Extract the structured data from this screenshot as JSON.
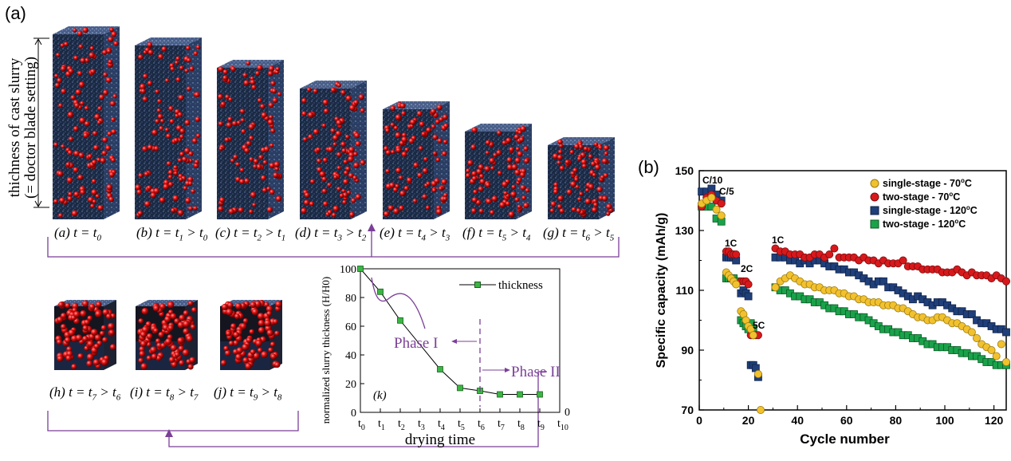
{
  "panel_a": {
    "label": "(a)",
    "thickness_label_line1": "thichness of cast slurry",
    "thickness_label_line2": "(= doctor blade setting)",
    "box_captions": [
      {
        "pre": "(a) t = t",
        "sub": "0",
        "mid": "",
        "sub2": ""
      },
      {
        "pre": "(b) t = t",
        "sub": "1",
        "mid": " > t",
        "sub2": "0"
      },
      {
        "pre": "(c) t = t",
        "sub": "2",
        "mid": " > t",
        "sub2": "1"
      },
      {
        "pre": "(d) t = t",
        "sub": "3",
        "mid": " > t",
        "sub2": "2"
      },
      {
        "pre": "(e) t = t",
        "sub": "4",
        "mid": " > t",
        "sub2": "3"
      },
      {
        "pre": "(f) t = t",
        "sub": "5",
        "mid": " > t",
        "sub2": "4"
      },
      {
        "pre": "(g) t = t",
        "sub": "6",
        "mid": " > t",
        "sub2": "5"
      },
      {
        "pre": "(h) t = t",
        "sub": "7",
        "mid": " > t",
        "sub2": "6"
      },
      {
        "pre": "(i) t = t",
        "sub": "8",
        "mid": " > t",
        "sub2": "7"
      },
      {
        "pre": "(j) t = t",
        "sub": "9",
        "mid": " > t",
        "sub2": "8"
      }
    ]
  },
  "chart_data": [
    {
      "type": "line",
      "panel": "(k)",
      "title": "",
      "xlabel": "drying time",
      "ylabel": "normalized slurry thickness (H/H0)",
      "x_ticks": [
        "t0",
        "t1",
        "t2",
        "t3",
        "t4",
        "t5",
        "t6",
        "t7",
        "t8",
        "t9",
        "t10"
      ],
      "y_ticks": [
        0,
        20,
        40,
        60,
        80,
        100
      ],
      "ylim": [
        0,
        100
      ],
      "right_axis_label": "0",
      "legend": "top-right",
      "series": [
        {
          "name": "thickness",
          "x": [
            "t0",
            "t1",
            "t2",
            "t3",
            "t4",
            "t5",
            "t6",
            "t7",
            "t8",
            "t9"
          ],
          "values": [
            100,
            84,
            64,
            null,
            30,
            17,
            15,
            12.5,
            12.5,
            12.5
          ]
        }
      ],
      "annotations": [
        "Phase I",
        "Phase II"
      ],
      "phase_boundary_x": "t6"
    },
    {
      "type": "scatter",
      "panel": "(b)",
      "title": "",
      "xlabel": "Cycle number",
      "ylabel": "Specific capacity (mAh/g)",
      "xlim": [
        0,
        125
      ],
      "ylim": [
        70,
        150
      ],
      "x_ticks": [
        0,
        20,
        40,
        60,
        80,
        100,
        120
      ],
      "y_ticks": [
        70,
        90,
        110,
        130,
        150
      ],
      "legend": "top-right",
      "annotations": [
        "C/10",
        "C/5",
        "1C",
        "2C",
        "5C",
        "1C"
      ],
      "colors": {
        "single70": "#f2c12e",
        "two70": "#d7191c",
        "single120": "#1f3f7a",
        "two120": "#1aa24a"
      },
      "series": [
        {
          "name": "single-stage - 70oC",
          "marker": "circle",
          "x": [
            1,
            3,
            5,
            7,
            9,
            11,
            12,
            13,
            14,
            15,
            17,
            18,
            19,
            20,
            21,
            22,
            24,
            25,
            31,
            33,
            35,
            37,
            39,
            41,
            43,
            45,
            47,
            49,
            51,
            53,
            55,
            57,
            59,
            61,
            63,
            65,
            67,
            69,
            71,
            73,
            75,
            77,
            79,
            81,
            83,
            85,
            87,
            89,
            91,
            93,
            95,
            97,
            99,
            101,
            103,
            105,
            107,
            109,
            111,
            113,
            115,
            117,
            119,
            121,
            123,
            125
          ],
          "values": [
            139,
            140,
            141,
            137,
            135,
            116,
            115,
            114,
            113,
            112,
            103,
            102,
            100,
            98,
            97,
            95,
            82,
            70,
            111,
            113,
            114,
            115,
            114,
            113,
            112,
            112,
            111,
            111,
            110,
            110,
            110,
            109,
            109,
            108,
            108,
            107,
            107,
            106,
            106,
            106,
            105,
            105,
            105,
            104,
            104,
            103,
            102,
            101,
            101,
            100,
            100,
            101,
            101,
            100,
            99,
            99,
            98,
            97,
            96,
            94,
            92,
            91,
            90,
            88,
            92,
            86
          ]
        },
        {
          "name": "two-stage - 70oC",
          "marker": "circle",
          "x": [
            1,
            3,
            5,
            7,
            9,
            11,
            12,
            13,
            14,
            15,
            17,
            18,
            19,
            20,
            21,
            22,
            23,
            24,
            31,
            33,
            35,
            37,
            39,
            41,
            43,
            45,
            47,
            49,
            51,
            53,
            55,
            57,
            59,
            61,
            63,
            65,
            67,
            69,
            71,
            73,
            75,
            77,
            79,
            81,
            83,
            85,
            87,
            89,
            91,
            93,
            95,
            97,
            99,
            101,
            103,
            105,
            107,
            109,
            111,
            113,
            115,
            117,
            119,
            121,
            123,
            125
          ],
          "values": [
            138,
            141,
            142,
            140,
            139,
            123,
            123,
            122,
            122,
            122,
            113,
            113,
            113,
            112,
            95,
            95,
            95,
            95,
            124,
            123,
            123,
            122,
            122,
            122,
            121,
            121,
            122,
            122,
            121,
            122,
            124,
            121,
            121,
            121,
            121,
            120,
            121,
            120,
            120,
            119,
            120,
            119,
            119,
            119,
            120,
            118,
            118,
            118,
            117,
            117,
            117,
            117,
            116,
            116,
            116,
            117,
            116,
            115,
            116,
            115,
            115,
            115,
            114,
            115,
            114,
            113
          ]
        },
        {
          "name": "single-stage - 120oC",
          "marker": "square",
          "x": [
            1,
            3,
            5,
            7,
            9,
            11,
            12,
            13,
            14,
            15,
            17,
            18,
            19,
            20,
            21,
            22,
            23,
            24,
            31,
            33,
            35,
            37,
            39,
            41,
            43,
            45,
            47,
            49,
            51,
            53,
            55,
            57,
            59,
            61,
            63,
            65,
            67,
            69,
            71,
            73,
            75,
            77,
            79,
            81,
            83,
            85,
            87,
            89,
            91,
            93,
            95,
            97,
            99,
            101,
            103,
            105,
            107,
            109,
            111,
            113,
            115,
            117,
            119,
            121,
            123,
            125
          ],
          "values": [
            143,
            143,
            144,
            142,
            140,
            121,
            121,
            121,
            121,
            120,
            109,
            110,
            109,
            108,
            85,
            85,
            84,
            81,
            121,
            121,
            121,
            120,
            120,
            119,
            120,
            119,
            120,
            120,
            119,
            118,
            118,
            117,
            117,
            116,
            116,
            115,
            114,
            113,
            112,
            113,
            113,
            111,
            111,
            110,
            109,
            108,
            107,
            108,
            107,
            106,
            105,
            106,
            106,
            105,
            104,
            103,
            103,
            102,
            102,
            100,
            99,
            99,
            98,
            97,
            97,
            96
          ]
        },
        {
          "name": "two-stage - 120oC",
          "marker": "square",
          "x": [
            1,
            3,
            5,
            7,
            9,
            11,
            12,
            13,
            14,
            15,
            17,
            18,
            19,
            20,
            21,
            22,
            31,
            33,
            35,
            37,
            39,
            41,
            43,
            45,
            47,
            49,
            51,
            53,
            55,
            57,
            59,
            61,
            63,
            65,
            67,
            69,
            71,
            73,
            75,
            77,
            79,
            81,
            83,
            85,
            87,
            89,
            91,
            93,
            95,
            97,
            99,
            101,
            103,
            105,
            107,
            109,
            111,
            113,
            115,
            117,
            119,
            121,
            123,
            125
          ],
          "values": [
            138,
            138,
            138,
            134,
            133,
            114,
            114,
            114,
            114,
            113,
            100,
            99,
            98,
            97,
            99,
            97,
            111,
            110,
            110,
            109,
            108,
            108,
            107,
            107,
            106,
            106,
            105,
            104,
            104,
            103,
            103,
            102,
            102,
            101,
            101,
            100,
            99,
            98,
            97,
            97,
            96,
            96,
            95,
            95,
            94,
            94,
            93,
            92,
            92,
            91,
            91,
            91,
            90,
            90,
            89,
            89,
            88,
            88,
            87,
            86,
            86,
            85,
            85,
            85
          ]
        }
      ]
    }
  ]
}
